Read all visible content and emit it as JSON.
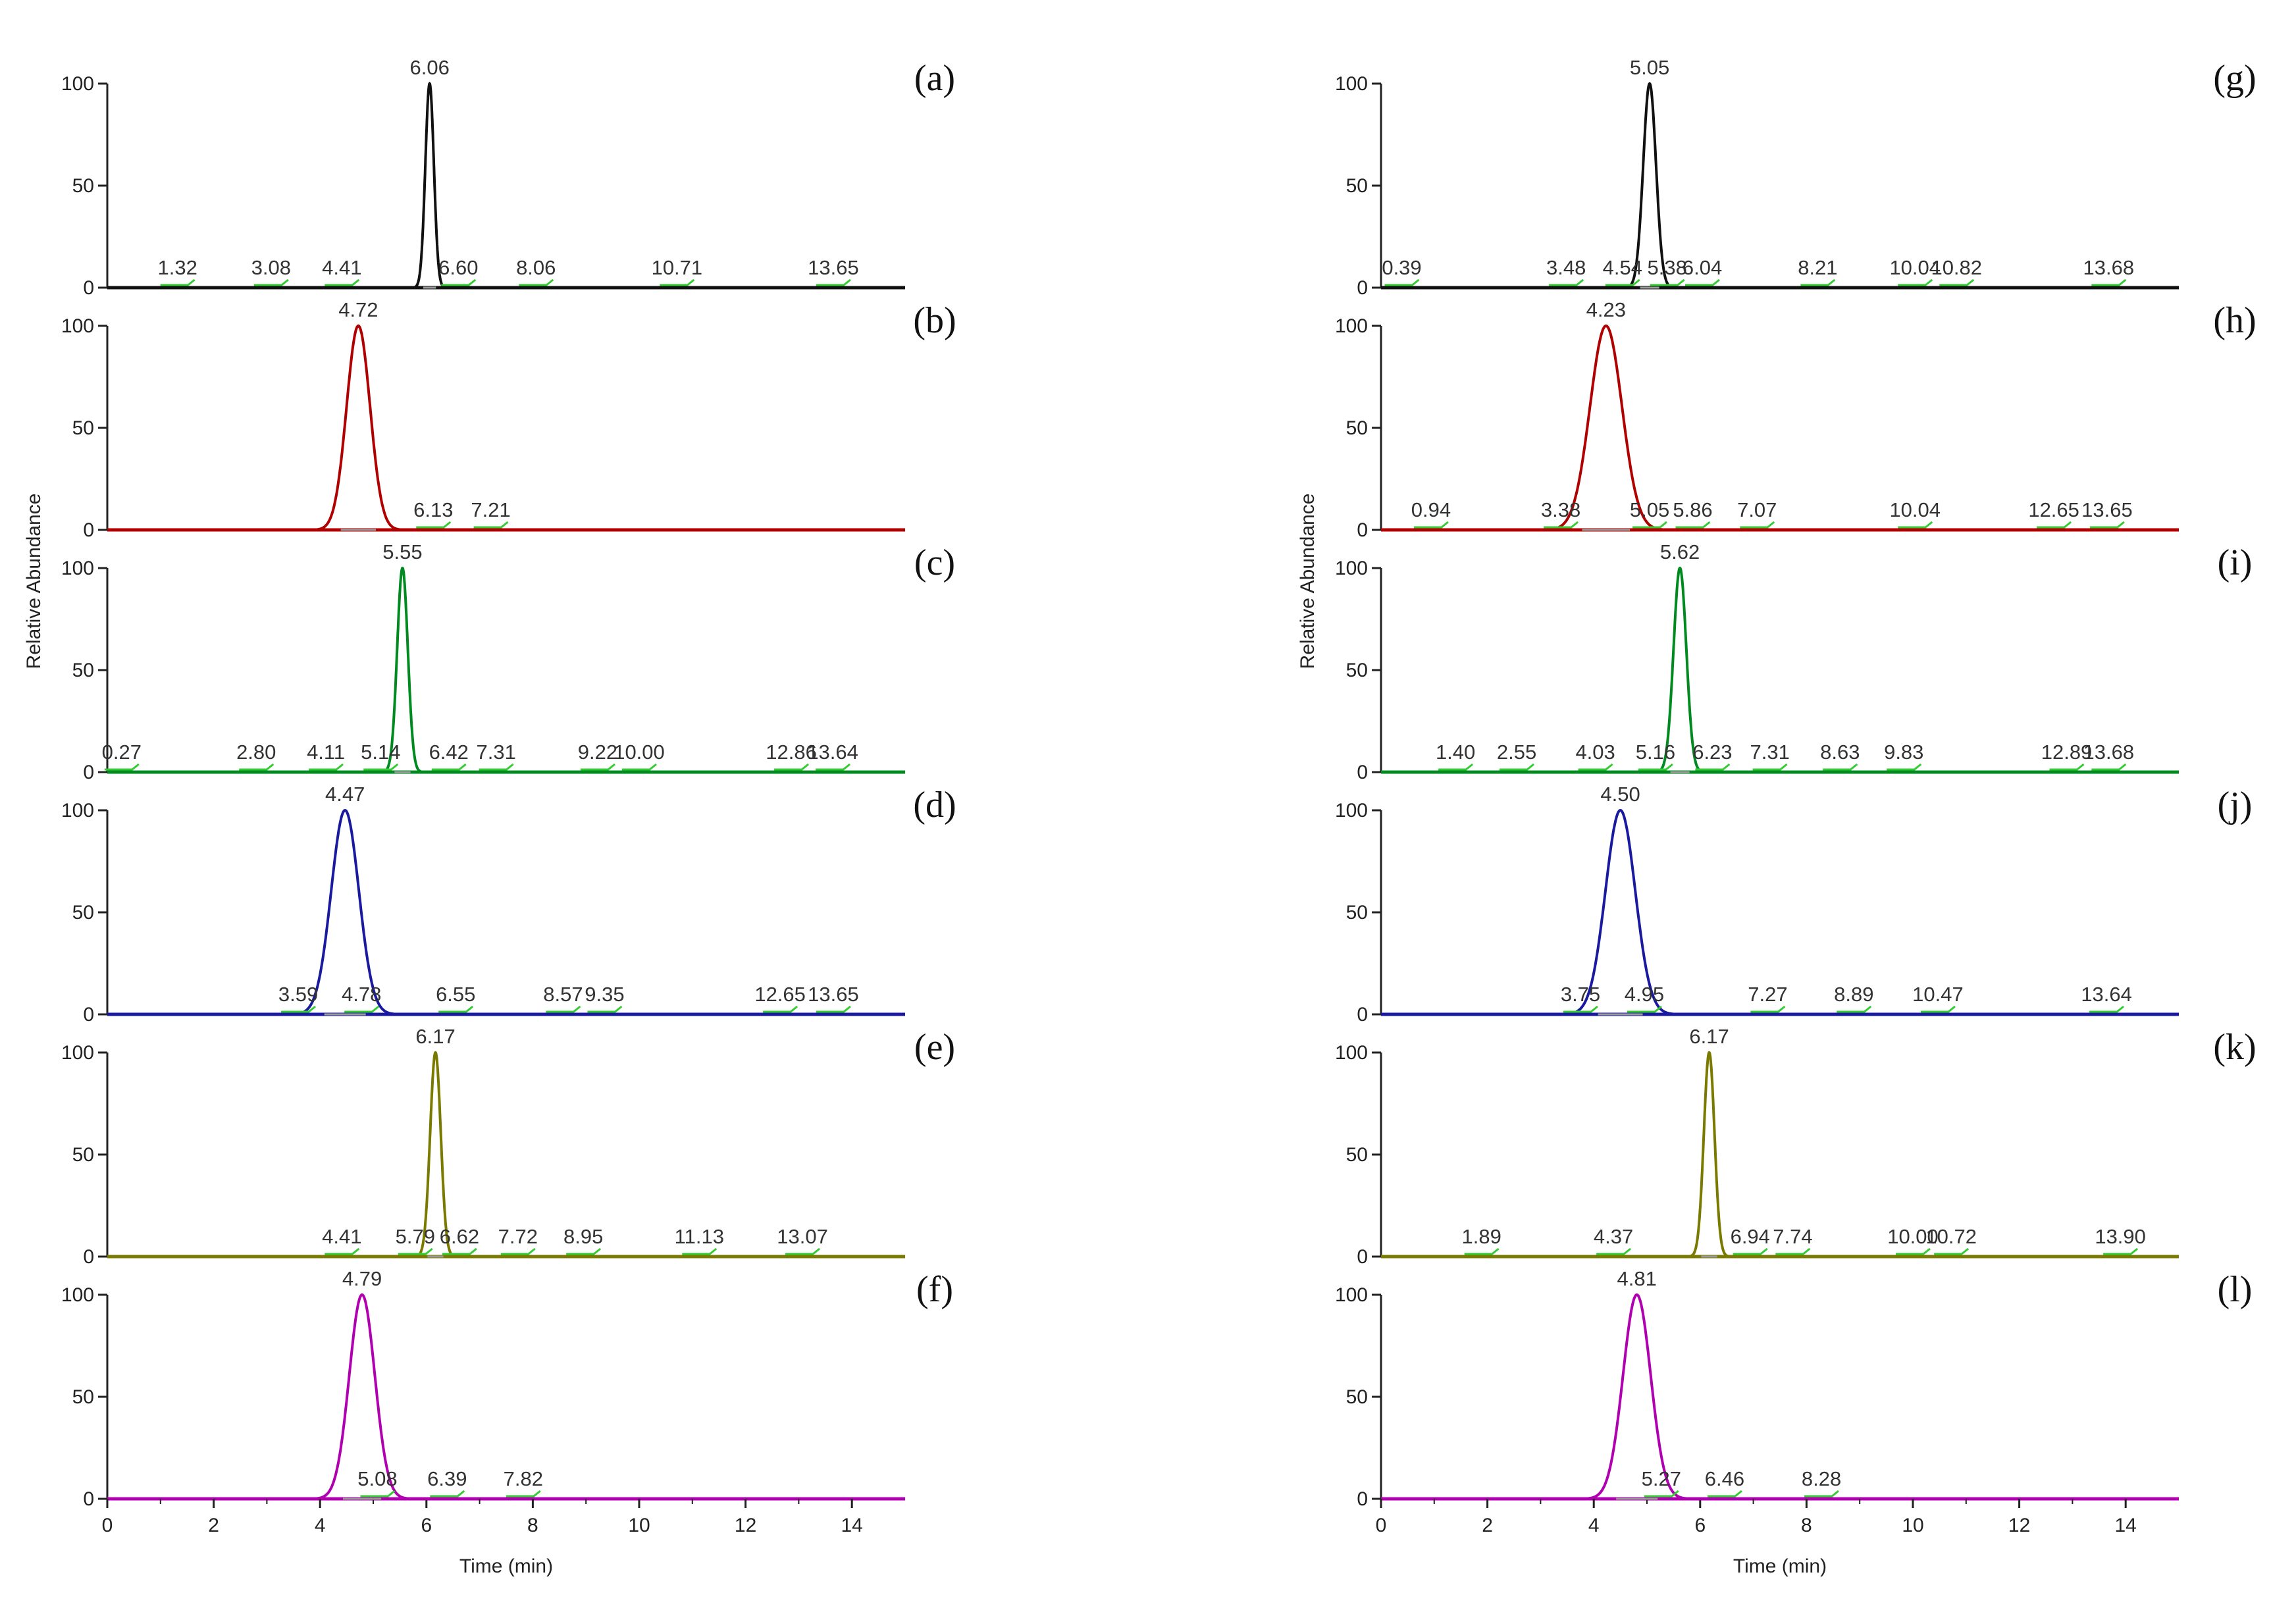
{
  "chart_data": {
    "type": "line",
    "figure_kind": "stacked chromatograms (12 panels, 2 columns)",
    "x_axis": {
      "label": "Time (min)",
      "range": [
        0,
        15
      ],
      "ticks": [
        0,
        2,
        4,
        6,
        8,
        10,
        12,
        14
      ],
      "tick_labels": [
        "0",
        "2",
        "4",
        "6",
        "8",
        "10",
        "12",
        "14"
      ]
    },
    "y_axis": {
      "label": "Relative Abundance",
      "range": [
        0,
        100
      ],
      "ticks": [
        0,
        50,
        100
      ],
      "tick_labels": [
        "0",
        "50",
        "100"
      ]
    },
    "colors": {
      "a": "#111111",
      "b": "#b00000",
      "c": "#008a20",
      "d": "#1a1aa0",
      "e": "#7a7a00",
      "f": "#b000b0",
      "marker": "#33cc33",
      "baseline_gray": "#999999"
    },
    "columns": [
      {
        "panels": [
          {
            "label": "(a)",
            "color_key": "a",
            "peak_rt": 6.06,
            "peak_width": 0.08,
            "peak_label": "6.06",
            "minor_peaks": [
              {
                "rt": 1.32,
                "label": "1.32"
              },
              {
                "rt": 3.08,
                "label": "3.08"
              },
              {
                "rt": 4.41,
                "label": "4.41"
              },
              {
                "rt": 6.6,
                "label": "6.60"
              },
              {
                "rt": 8.06,
                "label": "8.06"
              },
              {
                "rt": 10.71,
                "label": "10.71"
              },
              {
                "rt": 13.65,
                "label": "13.65"
              }
            ]
          },
          {
            "label": "(b)",
            "color_key": "b",
            "peak_rt": 4.72,
            "peak_width": 0.22,
            "peak_label": "4.72",
            "minor_peaks": [
              {
                "rt": 6.13,
                "label": "6.13"
              },
              {
                "rt": 7.21,
                "label": "7.21"
              }
            ]
          },
          {
            "label": "(c)",
            "color_key": "c",
            "peak_rt": 5.55,
            "peak_width": 0.1,
            "peak_label": "5.55",
            "minor_peaks": [
              {
                "rt": 0.27,
                "label": "0.27"
              },
              {
                "rt": 2.8,
                "label": "2.80"
              },
              {
                "rt": 4.11,
                "label": "4.11"
              },
              {
                "rt": 5.14,
                "label": "5.14"
              },
              {
                "rt": 6.42,
                "label": "6.42"
              },
              {
                "rt": 7.31,
                "label": "7.31"
              },
              {
                "rt": 9.22,
                "label": "9.22"
              },
              {
                "rt": 10.0,
                "label": "10.00"
              },
              {
                "rt": 12.86,
                "label": "12.86"
              },
              {
                "rt": 13.64,
                "label": "13.64"
              }
            ]
          },
          {
            "label": "(d)",
            "color_key": "d",
            "peak_rt": 4.47,
            "peak_width": 0.26,
            "peak_label": "4.47",
            "minor_peaks": [
              {
                "rt": 3.59,
                "label": "3.59"
              },
              {
                "rt": 4.78,
                "label": "4.78"
              },
              {
                "rt": 6.55,
                "label": "6.55"
              },
              {
                "rt": 8.57,
                "label": "8.57"
              },
              {
                "rt": 9.35,
                "label": "9.35"
              },
              {
                "rt": 12.65,
                "label": "12.65"
              },
              {
                "rt": 13.65,
                "label": "13.65"
              }
            ]
          },
          {
            "label": "(e)",
            "color_key": "e",
            "peak_rt": 6.17,
            "peak_width": 0.1,
            "peak_label": "6.17",
            "minor_peaks": [
              {
                "rt": 4.41,
                "label": "4.41"
              },
              {
                "rt": 5.79,
                "label": "5.79"
              },
              {
                "rt": 6.62,
                "label": "6.62"
              },
              {
                "rt": 7.72,
                "label": "7.72"
              },
              {
                "rt": 8.95,
                "label": "8.95"
              },
              {
                "rt": 11.13,
                "label": "11.13"
              },
              {
                "rt": 13.07,
                "label": "13.07"
              }
            ]
          },
          {
            "label": "(f)",
            "color_key": "f",
            "peak_rt": 4.79,
            "peak_width": 0.24,
            "peak_label": "4.79",
            "minor_peaks": [
              {
                "rt": 5.08,
                "label": "5.08"
              },
              {
                "rt": 6.39,
                "label": "6.39"
              },
              {
                "rt": 7.82,
                "label": "7.82"
              }
            ]
          }
        ]
      },
      {
        "panels": [
          {
            "label": "(g)",
            "color_key": "a",
            "peak_rt": 5.05,
            "peak_width": 0.12,
            "peak_label": "5.05",
            "minor_peaks": [
              {
                "rt": 0.39,
                "label": "0.39"
              },
              {
                "rt": 3.48,
                "label": "3.48"
              },
              {
                "rt": 4.54,
                "label": "4.54"
              },
              {
                "rt": 5.38,
                "label": "5.38"
              },
              {
                "rt": 6.04,
                "label": "6.04"
              },
              {
                "rt": 8.21,
                "label": "8.21"
              },
              {
                "rt": 10.04,
                "label": "10.04"
              },
              {
                "rt": 10.82,
                "label": "10.82"
              },
              {
                "rt": 13.68,
                "label": "13.68"
              }
            ]
          },
          {
            "label": "(h)",
            "color_key": "b",
            "peak_rt": 4.23,
            "peak_width": 0.3,
            "peak_label": "4.23",
            "minor_peaks": [
              {
                "rt": 0.94,
                "label": "0.94"
              },
              {
                "rt": 3.38,
                "label": "3.38"
              },
              {
                "rt": 5.05,
                "label": "5.05"
              },
              {
                "rt": 5.86,
                "label": "5.86"
              },
              {
                "rt": 7.07,
                "label": "7.07"
              },
              {
                "rt": 10.04,
                "label": "10.04"
              },
              {
                "rt": 12.65,
                "label": "12.65"
              },
              {
                "rt": 13.65,
                "label": "13.65"
              }
            ]
          },
          {
            "label": "(i)",
            "color_key": "c",
            "peak_rt": 5.62,
            "peak_width": 0.12,
            "peak_label": "5.62",
            "minor_peaks": [
              {
                "rt": 1.4,
                "label": "1.40"
              },
              {
                "rt": 2.55,
                "label": "2.55"
              },
              {
                "rt": 4.03,
                "label": "4.03"
              },
              {
                "rt": 5.16,
                "label": "5.16"
              },
              {
                "rt": 6.23,
                "label": "6.23"
              },
              {
                "rt": 7.31,
                "label": "7.31"
              },
              {
                "rt": 8.63,
                "label": "8.63"
              },
              {
                "rt": 9.83,
                "label": "9.83"
              },
              {
                "rt": 12.89,
                "label": "12.89"
              },
              {
                "rt": 13.68,
                "label": "13.68"
              }
            ]
          },
          {
            "label": "(j)",
            "color_key": "d",
            "peak_rt": 4.5,
            "peak_width": 0.28,
            "peak_label": "4.50",
            "minor_peaks": [
              {
                "rt": 3.75,
                "label": "3.75"
              },
              {
                "rt": 4.95,
                "label": "4.95"
              },
              {
                "rt": 7.27,
                "label": "7.27"
              },
              {
                "rt": 8.89,
                "label": "8.89"
              },
              {
                "rt": 10.47,
                "label": "10.47"
              },
              {
                "rt": 13.64,
                "label": "13.64"
              }
            ]
          },
          {
            "label": "(k)",
            "color_key": "e",
            "peak_rt": 6.17,
            "peak_width": 0.1,
            "peak_label": "6.17",
            "minor_peaks": [
              {
                "rt": 1.89,
                "label": "1.89"
              },
              {
                "rt": 4.37,
                "label": "4.37"
              },
              {
                "rt": 6.94,
                "label": "6.94"
              },
              {
                "rt": 7.74,
                "label": "7.74"
              },
              {
                "rt": 10.0,
                "label": "10.00"
              },
              {
                "rt": 10.72,
                "label": "10.72"
              },
              {
                "rt": 13.9,
                "label": "13.90"
              }
            ]
          },
          {
            "label": "(l)",
            "color_key": "f",
            "peak_rt": 4.81,
            "peak_width": 0.26,
            "peak_label": "4.81",
            "minor_peaks": [
              {
                "rt": 5.27,
                "label": "5.27"
              },
              {
                "rt": 6.46,
                "label": "6.46"
              },
              {
                "rt": 8.28,
                "label": "8.28"
              }
            ]
          }
        ]
      }
    ]
  }
}
